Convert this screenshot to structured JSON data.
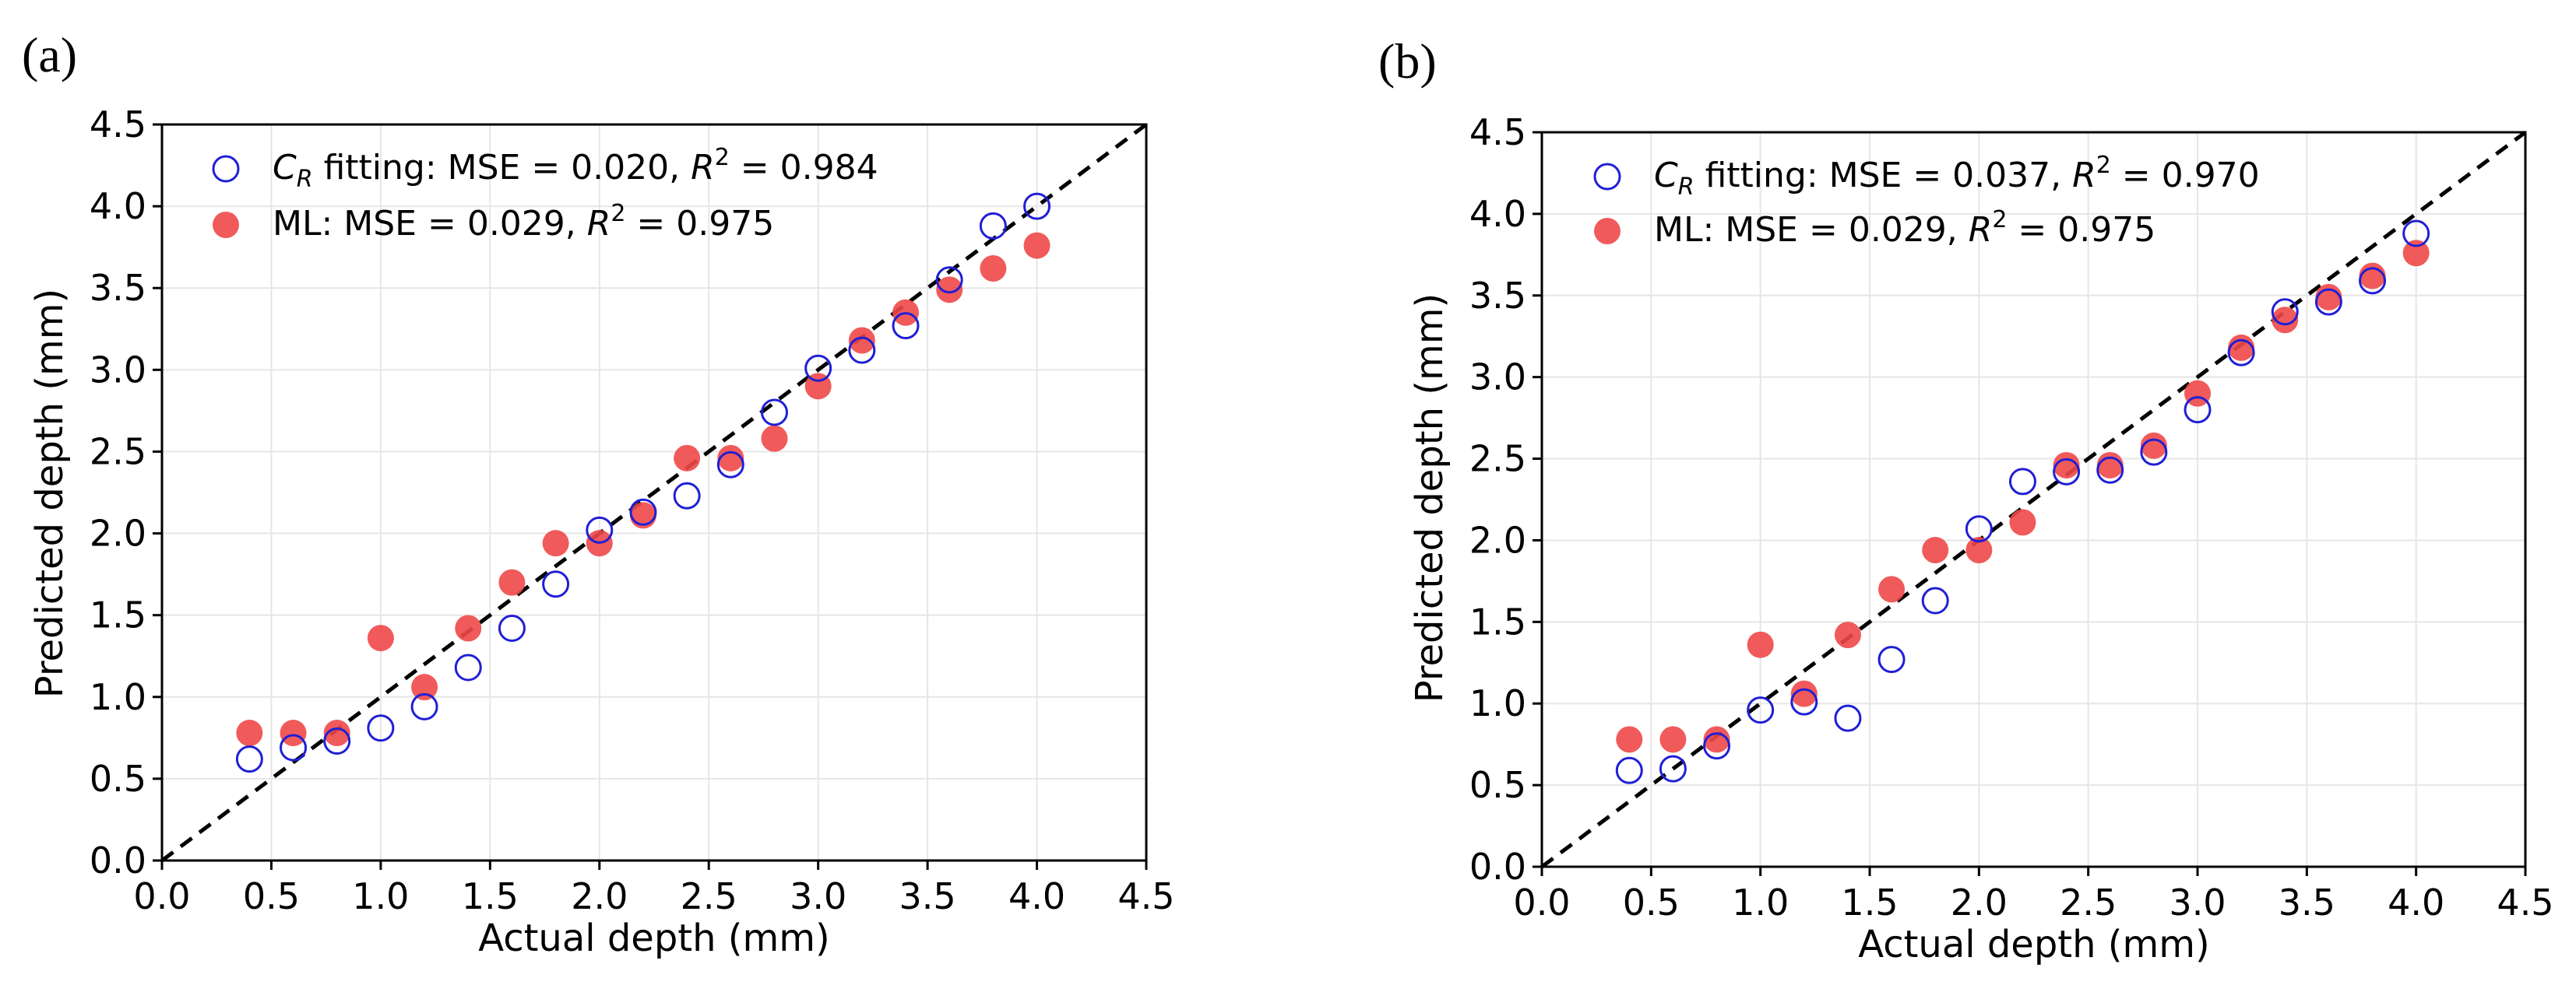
{
  "figure": {
    "panels": [
      "(a)",
      "(b)"
    ]
  },
  "chart_data": [
    {
      "panel": "(a)",
      "type": "scatter",
      "xlabel": "Actual depth (mm)",
      "ylabel": "Predicted depth (mm)",
      "xlim": [
        0,
        4.5
      ],
      "ylim": [
        0,
        4.5
      ],
      "xticks": [
        "0.0",
        "0.5",
        "1.0",
        "1.5",
        "2.0",
        "2.5",
        "3.0",
        "3.5",
        "4.0",
        "4.5"
      ],
      "yticks": [
        "0.0",
        "0.5",
        "1.0",
        "1.5",
        "2.0",
        "2.5",
        "3.0",
        "3.5",
        "4.0",
        "4.5"
      ],
      "grid": true,
      "reference_line": "y = x",
      "legend_position": "top-left",
      "series": [
        {
          "name": "C_R fitting",
          "legend": {
            "var": "C",
            "sub": "R",
            "text": " fitting: MSE = 0.020, ",
            "r2": "R",
            "sup": "2",
            "end": " = 0.984"
          },
          "marker": "open-circle",
          "color": "#1f1fd6",
          "x": [
            0.4,
            0.6,
            0.8,
            1.0,
            1.2,
            1.4,
            1.6,
            1.8,
            2.0,
            2.2,
            2.4,
            2.6,
            2.8,
            3.0,
            3.2,
            3.4,
            3.6,
            3.8,
            4.0
          ],
          "y": [
            0.62,
            0.69,
            0.73,
            0.81,
            0.94,
            1.18,
            1.42,
            1.69,
            2.02,
            2.13,
            2.23,
            2.42,
            2.74,
            3.01,
            3.12,
            3.27,
            3.55,
            3.88,
            4.0
          ]
        },
        {
          "name": "ML",
          "legend": {
            "text": "ML: MSE = 0.029, ",
            "r2": "R",
            "sup": "2",
            "end": " = 0.975"
          },
          "marker": "filled-circle",
          "color": "#f04848",
          "x": [
            0.4,
            0.6,
            0.8,
            1.0,
            1.2,
            1.4,
            1.6,
            1.8,
            2.0,
            2.2,
            2.4,
            2.6,
            2.8,
            3.0,
            3.2,
            3.4,
            3.6,
            3.8,
            4.0
          ],
          "y": [
            0.78,
            0.78,
            0.78,
            1.36,
            1.06,
            1.42,
            1.7,
            1.94,
            1.94,
            2.11,
            2.46,
            2.46,
            2.58,
            2.9,
            3.18,
            3.35,
            3.49,
            3.62,
            3.76
          ]
        }
      ]
    },
    {
      "panel": "(b)",
      "type": "scatter",
      "xlabel": "Actual depth (mm)",
      "ylabel": "Predicted depth (mm)",
      "xlim": [
        0,
        4.5
      ],
      "ylim": [
        0,
        4.5
      ],
      "xticks": [
        "0.0",
        "0.5",
        "1.0",
        "1.5",
        "2.0",
        "2.5",
        "3.0",
        "3.5",
        "4.0",
        "4.5"
      ],
      "yticks": [
        "0.0",
        "0.5",
        "1.0",
        "1.5",
        "2.0",
        "2.5",
        "3.0",
        "3.5",
        "4.0",
        "4.5"
      ],
      "grid": true,
      "reference_line": "y = x",
      "legend_position": "top-left",
      "series": [
        {
          "name": "C_R fitting",
          "legend": {
            "var": "C",
            "sub": "R",
            "text": " fitting: MSE = 0.037, ",
            "r2": "R",
            "sup": "2",
            "end": " = 0.970"
          },
          "marker": "open-circle",
          "color": "#1f1fd6",
          "x": [
            0.4,
            0.6,
            0.8,
            1.0,
            1.2,
            1.4,
            1.6,
            1.8,
            2.0,
            2.2,
            2.4,
            2.6,
            2.8,
            3.0,
            3.2,
            3.4,
            3.6,
            3.8,
            4.0
          ],
          "y": [
            0.59,
            0.6,
            0.74,
            0.96,
            1.01,
            0.91,
            1.27,
            1.63,
            2.07,
            2.36,
            2.42,
            2.43,
            2.54,
            2.8,
            3.15,
            3.4,
            3.46,
            3.59,
            3.88
          ]
        },
        {
          "name": "ML",
          "legend": {
            "text": "ML: MSE = 0.029, ",
            "r2": "R",
            "sup": "2",
            "end": " = 0.975"
          },
          "marker": "filled-circle",
          "color": "#f04848",
          "x": [
            0.4,
            0.6,
            0.8,
            1.0,
            1.2,
            1.4,
            1.6,
            1.8,
            2.0,
            2.2,
            2.4,
            2.6,
            2.8,
            3.0,
            3.2,
            3.4,
            3.6,
            3.8,
            4.0
          ],
          "y": [
            0.78,
            0.78,
            0.78,
            1.36,
            1.06,
            1.42,
            1.7,
            1.94,
            1.94,
            2.11,
            2.46,
            2.46,
            2.58,
            2.9,
            3.18,
            3.35,
            3.49,
            3.62,
            3.76
          ]
        }
      ]
    }
  ]
}
